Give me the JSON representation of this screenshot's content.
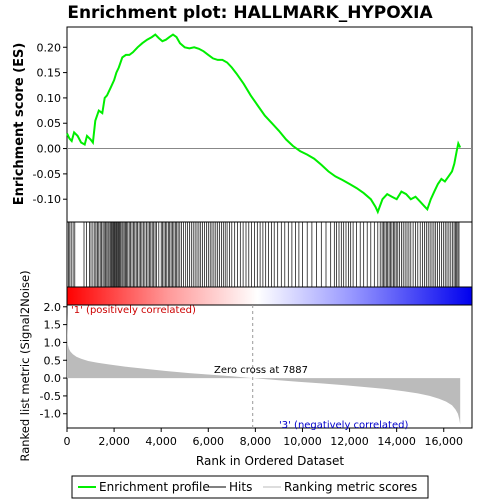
{
  "chart_data": {
    "type": "line",
    "title": "Enrichment plot: HALLMARK_HYPOXIA",
    "xlabel": "Rank in Ordered Dataset",
    "n_genes": 16700,
    "xlim": [
      0,
      17200
    ],
    "x_ticks": [
      0,
      2000,
      4000,
      6000,
      8000,
      10000,
      12000,
      14000,
      16000
    ],
    "x_tick_labels": [
      "0",
      "2,000",
      "4,000",
      "6,000",
      "8,000",
      "10,000",
      "12,000",
      "14,000",
      "16,000"
    ],
    "es_panel": {
      "ylabel": "Enrichment score (ES)",
      "ylim": [
        -0.145,
        0.24
      ],
      "y_ticks": [
        -0.1,
        -0.05,
        0.0,
        0.05,
        0.1,
        0.15,
        0.2
      ],
      "y_tick_labels": [
        "-0.10",
        "-0.05",
        "0.00",
        "0.05",
        "0.10",
        "0.15",
        "0.20"
      ],
      "series": [
        {
          "name": "Enrichment profile",
          "color": "#00ee00",
          "x": [
            0,
            100,
            200,
            300,
            450,
            600,
            750,
            850,
            1000,
            1100,
            1200,
            1350,
            1500,
            1600,
            1700,
            1850,
            2000,
            2100,
            2200,
            2350,
            2500,
            2650,
            2800,
            3000,
            3200,
            3400,
            3600,
            3750,
            3900,
            4050,
            4200,
            4350,
            4500,
            4650,
            4800,
            5000,
            5200,
            5400,
            5600,
            5800,
            6000,
            6200,
            6400,
            6600,
            6800,
            7000,
            7200,
            7500,
            7800,
            8100,
            8400,
            8700,
            9000,
            9300,
            9600,
            9900,
            10200,
            10500,
            10800,
            11100,
            11400,
            11700,
            12000,
            12300,
            12600,
            12900,
            13100,
            13200,
            13400,
            13600,
            13800,
            14000,
            14200,
            14400,
            14600,
            14800,
            15000,
            15200,
            15300,
            15450,
            15600,
            15750,
            15900,
            16050,
            16200,
            16350,
            16450,
            16550,
            16620,
            16700
          ],
          "y": [
            0.03,
            0.02,
            0.015,
            0.032,
            0.025,
            0.012,
            0.008,
            0.025,
            0.018,
            0.012,
            0.055,
            0.075,
            0.07,
            0.1,
            0.105,
            0.12,
            0.135,
            0.15,
            0.16,
            0.18,
            0.185,
            0.185,
            0.19,
            0.2,
            0.208,
            0.215,
            0.22,
            0.225,
            0.218,
            0.212,
            0.215,
            0.22,
            0.225,
            0.22,
            0.208,
            0.2,
            0.198,
            0.2,
            0.197,
            0.192,
            0.185,
            0.178,
            0.175,
            0.175,
            0.17,
            0.16,
            0.148,
            0.128,
            0.105,
            0.085,
            0.065,
            0.05,
            0.035,
            0.018,
            0.005,
            -0.005,
            -0.012,
            -0.02,
            -0.032,
            -0.045,
            -0.055,
            -0.062,
            -0.07,
            -0.078,
            -0.088,
            -0.1,
            -0.115,
            -0.125,
            -0.1,
            -0.09,
            -0.095,
            -0.1,
            -0.085,
            -0.09,
            -0.1,
            -0.095,
            -0.105,
            -0.115,
            -0.12,
            -0.1,
            -0.085,
            -0.07,
            -0.06,
            -0.065,
            -0.055,
            -0.045,
            -0.03,
            -0.005,
            0.01,
            0.002
          ]
        }
      ]
    },
    "hits_panel": {
      "legend_name": "Hits",
      "color": "#000000",
      "positions": [
        60,
        120,
        180,
        260,
        330,
        720,
        830,
        950,
        1020,
        1100,
        1180,
        1230,
        1290,
        1350,
        1410,
        1470,
        1530,
        1580,
        1640,
        1690,
        1740,
        1790,
        1840,
        1880,
        1920,
        1960,
        2000,
        2040,
        2080,
        2120,
        2160,
        2200,
        2240,
        2280,
        2330,
        2380,
        2430,
        2480,
        2530,
        2580,
        2640,
        2700,
        2760,
        2820,
        2880,
        2940,
        3000,
        3060,
        3120,
        3180,
        3240,
        3310,
        3380,
        3440,
        3500,
        3560,
        3620,
        3680,
        3740,
        3800,
        3900,
        4000,
        4060,
        4120,
        4180,
        4240,
        4300,
        4360,
        4420,
        4480,
        4540,
        4600,
        4660,
        4720,
        4790,
        4860,
        4950,
        5040,
        5120,
        5200,
        5280,
        5360,
        5440,
        5520,
        5600,
        5680,
        5760,
        5840,
        5920,
        6000,
        6080,
        6160,
        6240,
        6320,
        6400,
        6480,
        6560,
        6640,
        6720,
        6800,
        6900,
        7000,
        7120,
        7240,
        7360,
        7480,
        7600,
        7720,
        7840,
        7960,
        8080,
        8200,
        8320,
        8440,
        8560,
        8680,
        8800,
        8950,
        9100,
        9250,
        9400,
        9550,
        9700,
        9850,
        10000,
        10200,
        10400,
        10600,
        10800,
        11000,
        11200,
        11350,
        11450,
        11550,
        11650,
        11750,
        11850,
        11950,
        12050,
        12150,
        12300,
        12450,
        12600,
        12750,
        12900,
        13050,
        13200,
        13300,
        13380,
        13440,
        13500,
        13560,
        13620,
        13680,
        13740,
        13800,
        13860,
        13920,
        13980,
        14050,
        14120,
        14200,
        14280,
        14360,
        14440,
        14520,
        14600,
        14700,
        14800,
        14900,
        15000,
        15100,
        15180,
        15260,
        15340,
        15420,
        15500,
        15580,
        15660,
        15740,
        15820,
        15900,
        15980,
        16060,
        16140,
        16220,
        16300,
        16380,
        16440,
        16500,
        16550,
        16600,
        16650
      ]
    },
    "rank_panel": {
      "ylabel": "Ranked list metric (Signal2Noise)",
      "legend_name": "Ranking metric scores",
      "fill_color": "#bbbbbb",
      "ylim": [
        -1.4,
        2.05
      ],
      "y_ticks": [
        -1.0,
        -0.5,
        0.0,
        0.5,
        1.0,
        1.5,
        2.0
      ],
      "y_tick_labels": [
        "-1.0",
        "-0.5",
        "0.0",
        "0.5",
        "1.0",
        "1.5",
        "2.0"
      ],
      "x": [
        0,
        30,
        80,
        150,
        250,
        400,
        600,
        900,
        1300,
        1800,
        2500,
        3300,
        4200,
        5200,
        6200,
        7000,
        7887,
        8800,
        9800,
        10800,
        11800,
        12800,
        13600,
        14300,
        14900,
        15400,
        15800,
        16100,
        16350,
        16500,
        16600,
        16660,
        16700
      ],
      "y": [
        1.85,
        0.95,
        0.82,
        0.74,
        0.67,
        0.6,
        0.54,
        0.48,
        0.43,
        0.38,
        0.32,
        0.26,
        0.2,
        0.14,
        0.09,
        0.05,
        0.0,
        -0.05,
        -0.1,
        -0.15,
        -0.2,
        -0.26,
        -0.31,
        -0.37,
        -0.43,
        -0.5,
        -0.58,
        -0.66,
        -0.76,
        -0.88,
        -1.0,
        -1.15,
        -1.3
      ],
      "zero_cross": 7887,
      "zero_cross_label": "Zero cross at 7887",
      "pos_label": "'1' (positively correlated)",
      "neg_label": "'3' (negatively correlated)",
      "pos_label_color": "#cc0000",
      "neg_label_color": "#0000cc"
    },
    "colorbar": {
      "stops": [
        "#ff0000",
        "#ff9999",
        "#ffffff",
        "#9999ff",
        "#0000ee"
      ]
    },
    "legend": {
      "placement": "bottom",
      "items": [
        {
          "label": "Enrichment profile",
          "color": "#00ee00"
        },
        {
          "label": "Hits",
          "color": "#000000"
        },
        {
          "label": "Ranking metric scores",
          "color": "#bbbbbb"
        }
      ]
    }
  }
}
